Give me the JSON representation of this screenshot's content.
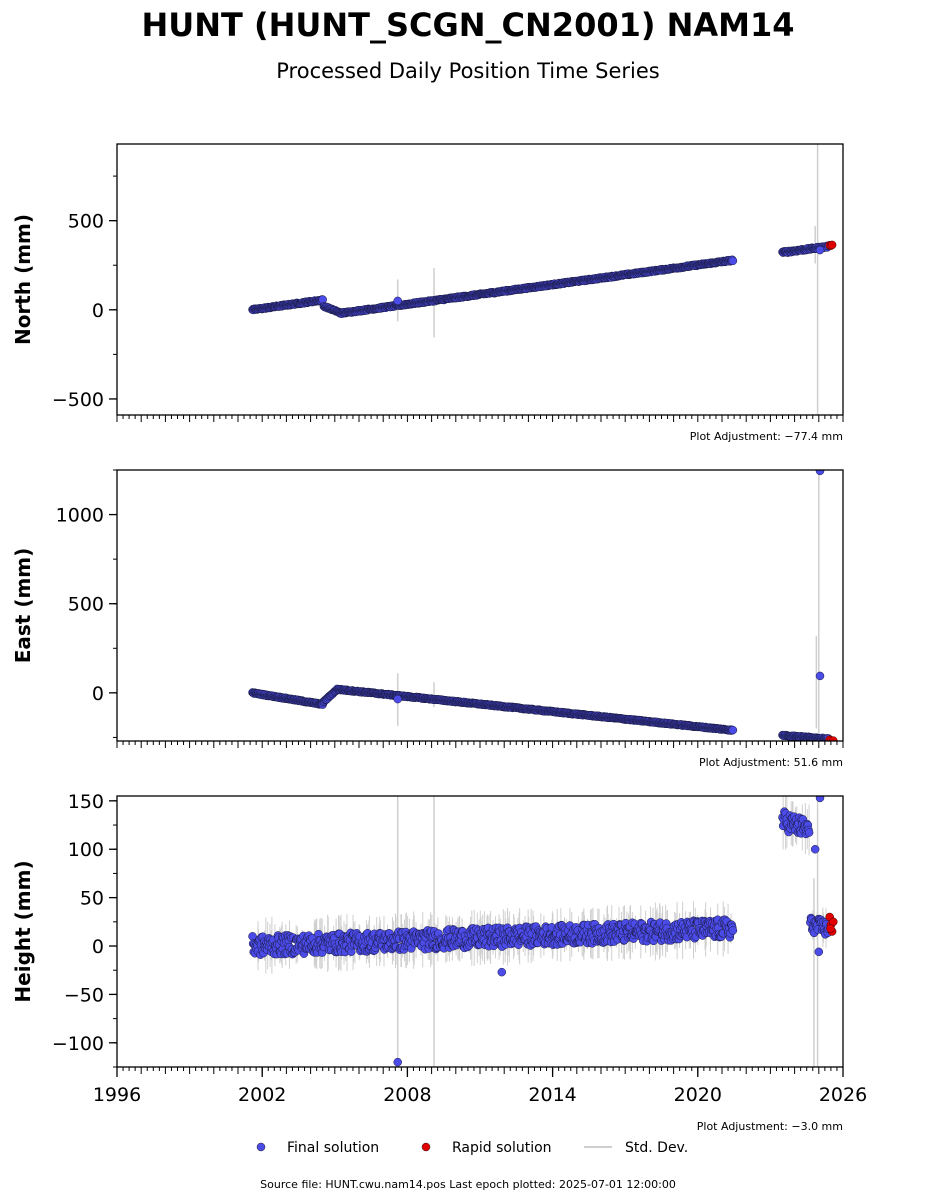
{
  "figure": {
    "title": "HUNT (HUNT_SCGN_CN2001) NAM14",
    "subtitle": "Processed Daily Position Time Series",
    "footer": "Source file: HUNT.cwu.nam14.pos  Last epoch plotted: 2025-07-01 12:00:00"
  },
  "legend": {
    "placement": "bottom-center",
    "final": {
      "label": "Final solution",
      "color": "#4b4be8"
    },
    "rapid": {
      "label": "Rapid solution",
      "color": "#e00000"
    },
    "std": {
      "label": "Std. Dev.",
      "color": "#cfcfcf"
    }
  },
  "chart_data": [
    {
      "type": "scatter",
      "ylabel": "North (mm)",
      "xlim": [
        1996,
        2026
      ],
      "ylim": [
        -590,
        930
      ],
      "yticks": [
        -500,
        0,
        500
      ],
      "adjustment": "Plot Adjustment: -77.4 mm",
      "show_xtick_labels": false,
      "final_segments": [
        {
          "x0": 2001.6,
          "x1": 2004.5,
          "y0": 0,
          "y1": 55,
          "noise": 4,
          "curve": 0
        },
        {
          "x0": 2004.55,
          "x1": 2005.2,
          "y0": 20,
          "y1": -15,
          "noise": 3,
          "curve": 0
        },
        {
          "x0": 2005.2,
          "x1": 2021.45,
          "y0": -20,
          "y1": 278,
          "noise": 4,
          "curve": 0
        },
        {
          "x0": 2023.5,
          "x1": 2025.4,
          "y0": 322,
          "y1": 355,
          "noise": 5,
          "curve": 0
        }
      ],
      "final_outliers": [
        {
          "x": 2007.6,
          "y": 50
        },
        {
          "x": 2025.05,
          "y": 335
        }
      ],
      "rapid_points": [
        {
          "x": 2025.45,
          "y": 362
        },
        {
          "x": 2025.5,
          "y": 360
        },
        {
          "x": 2025.55,
          "y": 364
        }
      ],
      "std_bars": [
        {
          "x": 2007.6,
          "low": -65,
          "high": 170
        },
        {
          "x": 2009.1,
          "low": -155,
          "high": 235
        },
        {
          "x": 2024.95,
          "low": -590,
          "high": 930
        },
        {
          "x": 2024.85,
          "low": 260,
          "high": 470
        }
      ]
    },
    {
      "type": "scatter",
      "ylabel": "East (mm)",
      "xlim": [
        1996,
        2026
      ],
      "ylim": [
        -270,
        1250
      ],
      "yticks": [
        0,
        500,
        1000
      ],
      "adjustment": "Plot Adjustment: 51.6 mm",
      "show_xtick_labels": false,
      "final_segments": [
        {
          "x0": 2001.6,
          "x1": 2004.5,
          "y0": 0,
          "y1": -65,
          "noise": 3,
          "curve": 0
        },
        {
          "x0": 2004.5,
          "x1": 2005.1,
          "y0": -55,
          "y1": 20,
          "noise": 3,
          "curve": 0
        },
        {
          "x0": 2005.1,
          "x1": 2021.45,
          "y0": 20,
          "y1": -210,
          "noise": 3,
          "curve": 0
        },
        {
          "x0": 2023.5,
          "x1": 2025.4,
          "y0": -238,
          "y1": -258,
          "noise": 3,
          "curve": 0
        }
      ],
      "final_outliers": [
        {
          "x": 2007.6,
          "y": -35
        },
        {
          "x": 2025.05,
          "y": 1245
        },
        {
          "x": 2025.05,
          "y": 95
        }
      ],
      "rapid_points": [
        {
          "x": 2025.45,
          "y": -262
        },
        {
          "x": 2025.5,
          "y": -266
        },
        {
          "x": 2025.6,
          "y": -268
        }
      ],
      "std_bars": [
        {
          "x": 2007.6,
          "low": -185,
          "high": 110
        },
        {
          "x": 2009.1,
          "low": -80,
          "high": 60
        },
        {
          "x": 2025.0,
          "low": -270,
          "high": 1250
        },
        {
          "x": 2024.9,
          "low": -200,
          "high": 320
        }
      ]
    },
    {
      "type": "scatter",
      "ylabel": "Height (mm)",
      "xlim": [
        1996,
        2026
      ],
      "ylim": [
        -125,
        155
      ],
      "yticks": [
        -100,
        -50,
        0,
        50,
        100,
        150
      ],
      "xticks": [
        1996,
        2002,
        2008,
        2014,
        2020,
        2026
      ],
      "adjustment": "Plot Adjustment: -3.0 mm",
      "show_xtick_labels": true,
      "final_segments": [
        {
          "x0": 2001.6,
          "x1": 2021.45,
          "y0": 0,
          "y1": 18,
          "noise": 10,
          "curve": 0
        },
        {
          "x0": 2023.5,
          "x1": 2024.6,
          "y0": 130,
          "y1": 120,
          "noise": 10,
          "curve": 0
        },
        {
          "x0": 2024.65,
          "x1": 2025.4,
          "y0": 22,
          "y1": 18,
          "noise": 8,
          "curve": 0
        }
      ],
      "final_outliers": [
        {
          "x": 2007.6,
          "y": -120
        },
        {
          "x": 2011.9,
          "y": -27
        },
        {
          "x": 2024.85,
          "y": 100
        },
        {
          "x": 2025.05,
          "y": 153
        },
        {
          "x": 2025.0,
          "y": -6
        }
      ],
      "rapid_points": [
        {
          "x": 2025.45,
          "y": 30
        },
        {
          "x": 2025.5,
          "y": 22
        },
        {
          "x": 2025.55,
          "y": 15
        },
        {
          "x": 2025.6,
          "y": 25
        },
        {
          "x": 2025.48,
          "y": 18
        }
      ],
      "std_bars": [
        {
          "x": 2007.6,
          "low": -125,
          "high": 155
        },
        {
          "x": 2009.1,
          "low": -125,
          "high": 155
        },
        {
          "x": 2024.8,
          "low": -125,
          "high": 70
        },
        {
          "x": 2024.95,
          "low": -125,
          "high": 155
        }
      ]
    }
  ]
}
